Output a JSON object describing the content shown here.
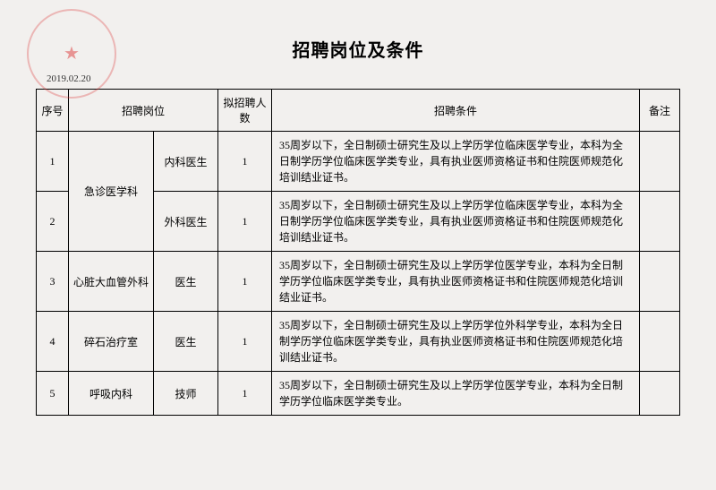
{
  "stamp_date": "2019.02.20",
  "title": "招聘岗位及条件",
  "headers": {
    "seq": "序号",
    "position": "招聘岗位",
    "count": "拟招聘人数",
    "requirement": "招聘条件",
    "note": "备注"
  },
  "rows": [
    {
      "seq": "1",
      "dept": "急诊医学科",
      "role": "内科医生",
      "count": "1",
      "req": "35周岁以下，全日制硕士研究生及以上学历学位临床医学专业，本科为全日制学历学位临床医学类专业，具有执业医师资格证书和住院医师规范化培训结业证书。",
      "note": ""
    },
    {
      "seq": "2",
      "dept": "",
      "role": "外科医生",
      "count": "1",
      "req": "35周岁以下，全日制硕士研究生及以上学历学位临床医学专业，本科为全日制学历学位临床医学类专业，具有执业医师资格证书和住院医师规范化培训结业证书。",
      "note": ""
    },
    {
      "seq": "3",
      "dept": "心脏大血管外科",
      "role": "医生",
      "count": "1",
      "req": "35周岁以下，全日制硕士研究生及以上学历学位医学专业，本科为全日制学历学位临床医学类专业，具有执业医师资格证书和住院医师规范化培训结业证书。",
      "note": ""
    },
    {
      "seq": "4",
      "dept": "碎石治疗室",
      "role": "医生",
      "count": "1",
      "req": "35周岁以下，全日制硕士研究生及以上学历学位外科学专业，本科为全日制学历学位临床医学类专业，具有执业医师资格证书和住院医师规范化培训结业证书。",
      "note": ""
    },
    {
      "seq": "5",
      "dept": "呼吸内科",
      "role": "技师",
      "count": "1",
      "req": "35周岁以下，全日制硕士研究生及以上学历学位医学专业，本科为全日制学历学位临床医学类专业。",
      "note": ""
    }
  ],
  "style": {
    "background": "#f2f0ee",
    "border_color": "#000000",
    "text_color": "#000000",
    "stamp_color": "rgba(220,50,50,0.6)",
    "title_fontsize": 20,
    "cell_fontsize": 12
  }
}
